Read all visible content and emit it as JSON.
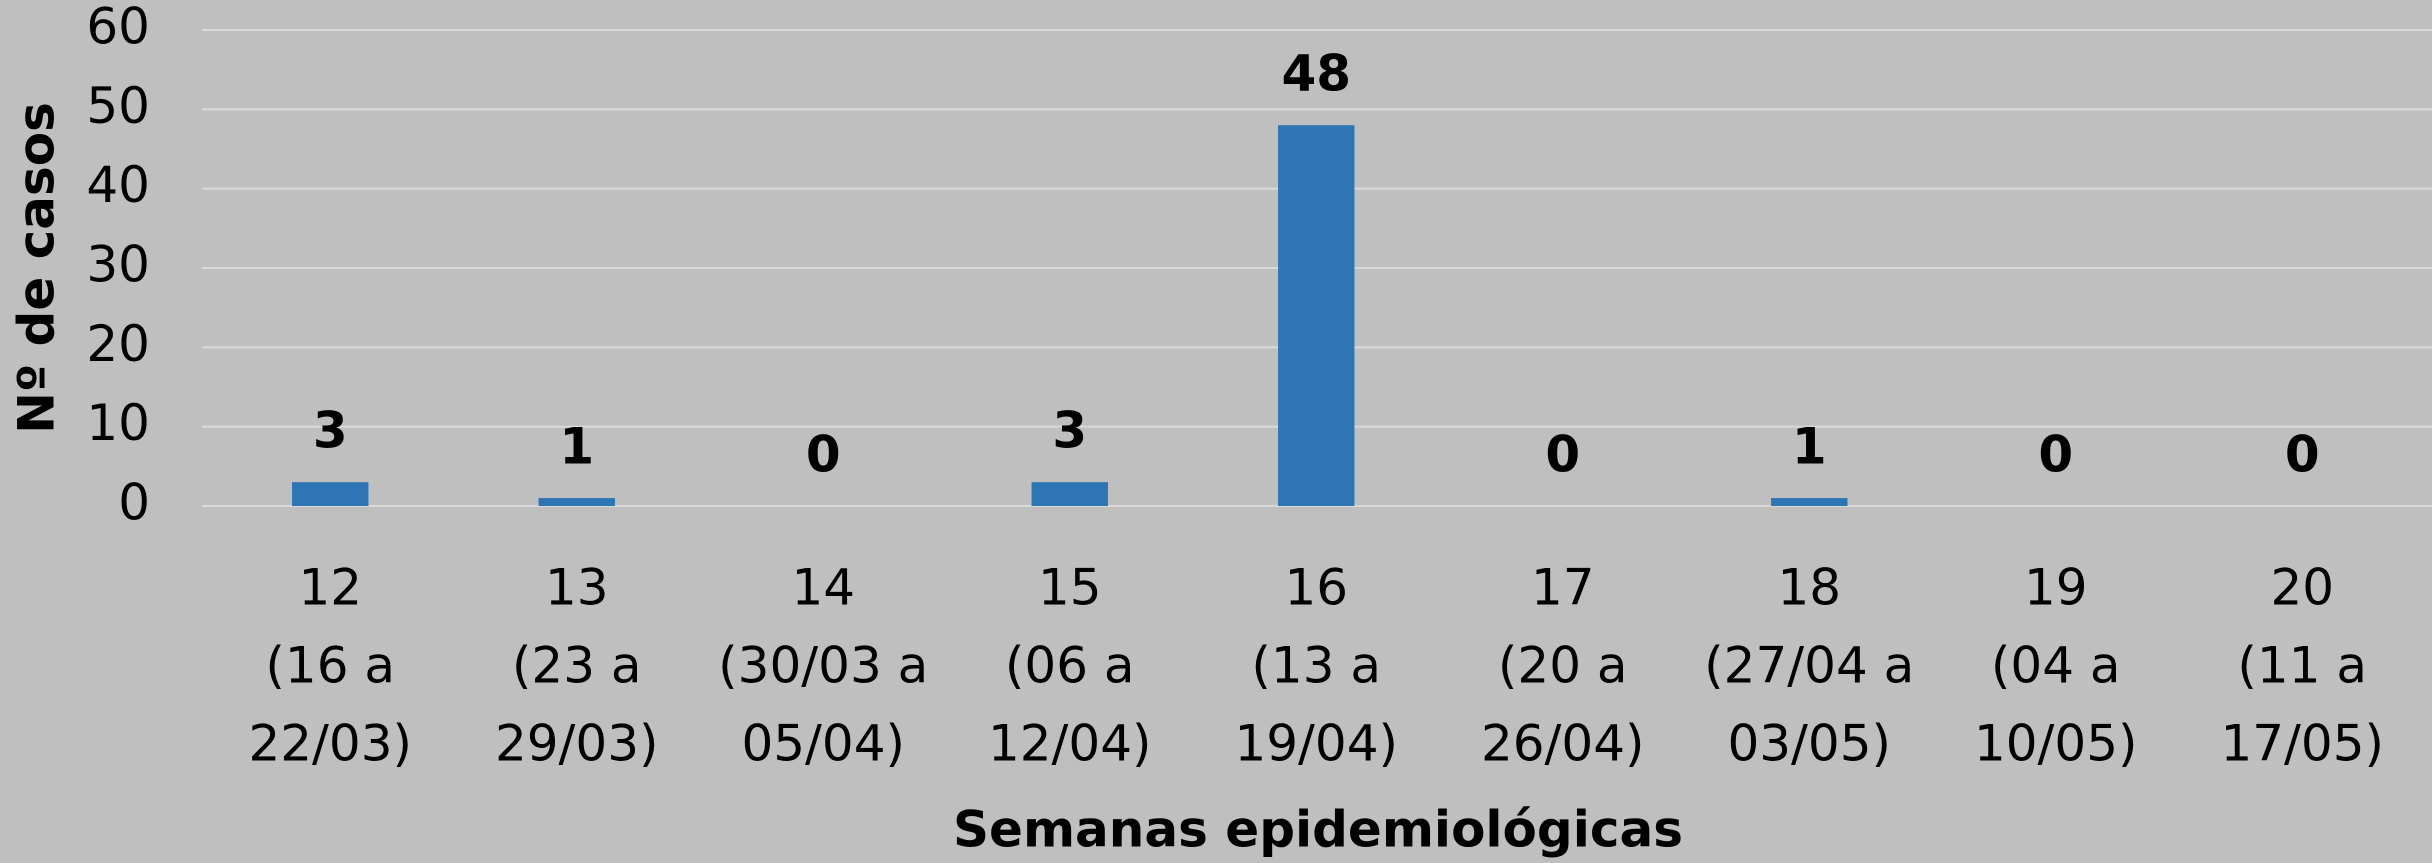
{
  "chart_data": {
    "type": "bar",
    "y_axis_label": "Nº de casos",
    "x_axis_label": "Semanas epidemiológicas",
    "categories": [
      [
        "12",
        "(16 a",
        "22/03)"
      ],
      [
        "13",
        "(23 a",
        "29/03)"
      ],
      [
        "14",
        "(30/03 a",
        "05/04)"
      ],
      [
        "15",
        "(06 a",
        "12/04)"
      ],
      [
        "16",
        "(13 a",
        "19/04)"
      ],
      [
        "17",
        "(20 a",
        "26/04)"
      ],
      [
        "18",
        "(27/04 a",
        "03/05)"
      ],
      [
        "19",
        "(04 a",
        "10/05)"
      ],
      [
        "20",
        "(11 a",
        "17/05)"
      ]
    ],
    "values": [
      3,
      1,
      0,
      3,
      48,
      0,
      1,
      0,
      0
    ],
    "color": "#2e75b6",
    "ylim": [
      0,
      60
    ],
    "yticks": [
      0,
      10,
      20,
      30,
      40,
      50,
      60
    ],
    "grid": true
  }
}
